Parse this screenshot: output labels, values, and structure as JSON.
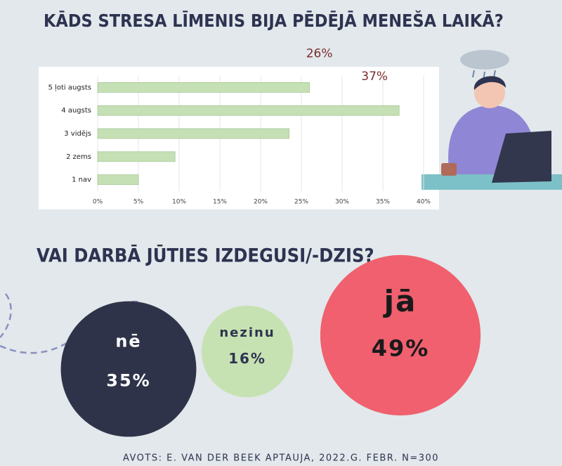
{
  "chart_data": [
    {
      "type": "bar",
      "orientation": "horizontal",
      "title": "KĀDS STRESA LĪMENIS BIJA PĒDĒJĀ MENEŠA LAIKĀ?",
      "categories": [
        "5 ļoti augsts",
        "4 augsts",
        "3 vidējs",
        "2 zems",
        "1 nav"
      ],
      "values": [
        26,
        37,
        23.5,
        9.5,
        5
      ],
      "value_labels": [
        "26%",
        "37%",
        null,
        null,
        null
      ],
      "color": "#c5e0b4",
      "xlim": [
        0,
        40
      ],
      "xticks": [
        {
          "value": 0,
          "label": "0%"
        },
        {
          "value": 5,
          "label": "5%"
        },
        {
          "value": 10,
          "label": "10%"
        },
        {
          "value": 15,
          "label": "15%"
        },
        {
          "value": 20,
          "label": "20%"
        },
        {
          "value": 25,
          "label": "25%"
        },
        {
          "value": 30,
          "label": "30%"
        },
        {
          "value": 35,
          "label": "35%"
        },
        {
          "value": 40,
          "label": "40%"
        }
      ],
      "grid": true
    },
    {
      "type": "bubble",
      "title": "VAI DARBĀ JŪTIES IZDEGUSI/-DZIS?",
      "categories": [
        "nē",
        "nezinu",
        "jā"
      ],
      "values": [
        35,
        16,
        49
      ],
      "value_labels": [
        "35%",
        "16%",
        "49%"
      ],
      "colors": [
        "#2f3349",
        "#c7e2b2",
        "#f0606e"
      ]
    }
  ],
  "source": "AVOTS: E. VAN DER BEEK APTAUJA, 2022.G. FEBR. N=300"
}
